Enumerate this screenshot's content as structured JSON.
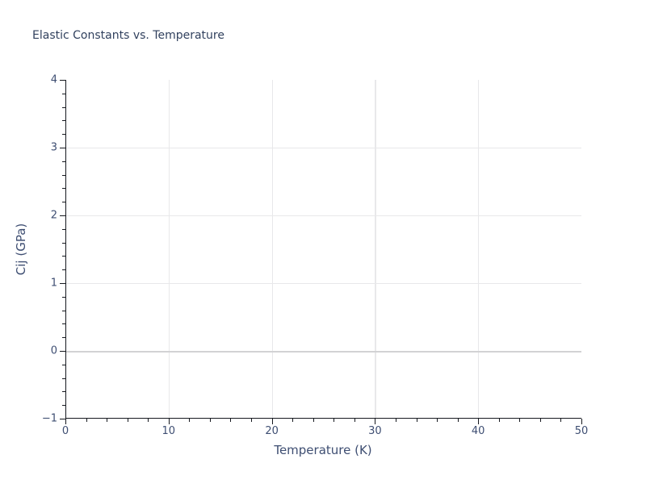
{
  "chart_data": {
    "type": "line",
    "title": "Elastic Constants vs. Temperature",
    "xlabel": "Temperature (K)",
    "ylabel": "Cij (GPa)",
    "xlim": [
      0,
      50
    ],
    "ylim": [
      -1,
      4
    ],
    "x_major_ticks": [
      0,
      10,
      20,
      30,
      40,
      50
    ],
    "x_tick_labels": [
      "0",
      "10",
      "20",
      "30",
      "40",
      "50"
    ],
    "x_minor_tick_step": 2,
    "y_major_ticks": [
      -1,
      0,
      1,
      2,
      3,
      4
    ],
    "y_tick_labels": [
      "−1",
      "0",
      "1",
      "2",
      "3",
      "4"
    ],
    "y_minor_tick_step": 0.2,
    "grid": "on",
    "zero_line": "on",
    "legend": "none",
    "series": [],
    "colors": {
      "title": "#31415e",
      "tick_text": "#3e4e72",
      "axis": "#16191f",
      "grid": "#e8e8ea",
      "zero_line": "#d2d2d4",
      "background": "#ffffff"
    }
  }
}
